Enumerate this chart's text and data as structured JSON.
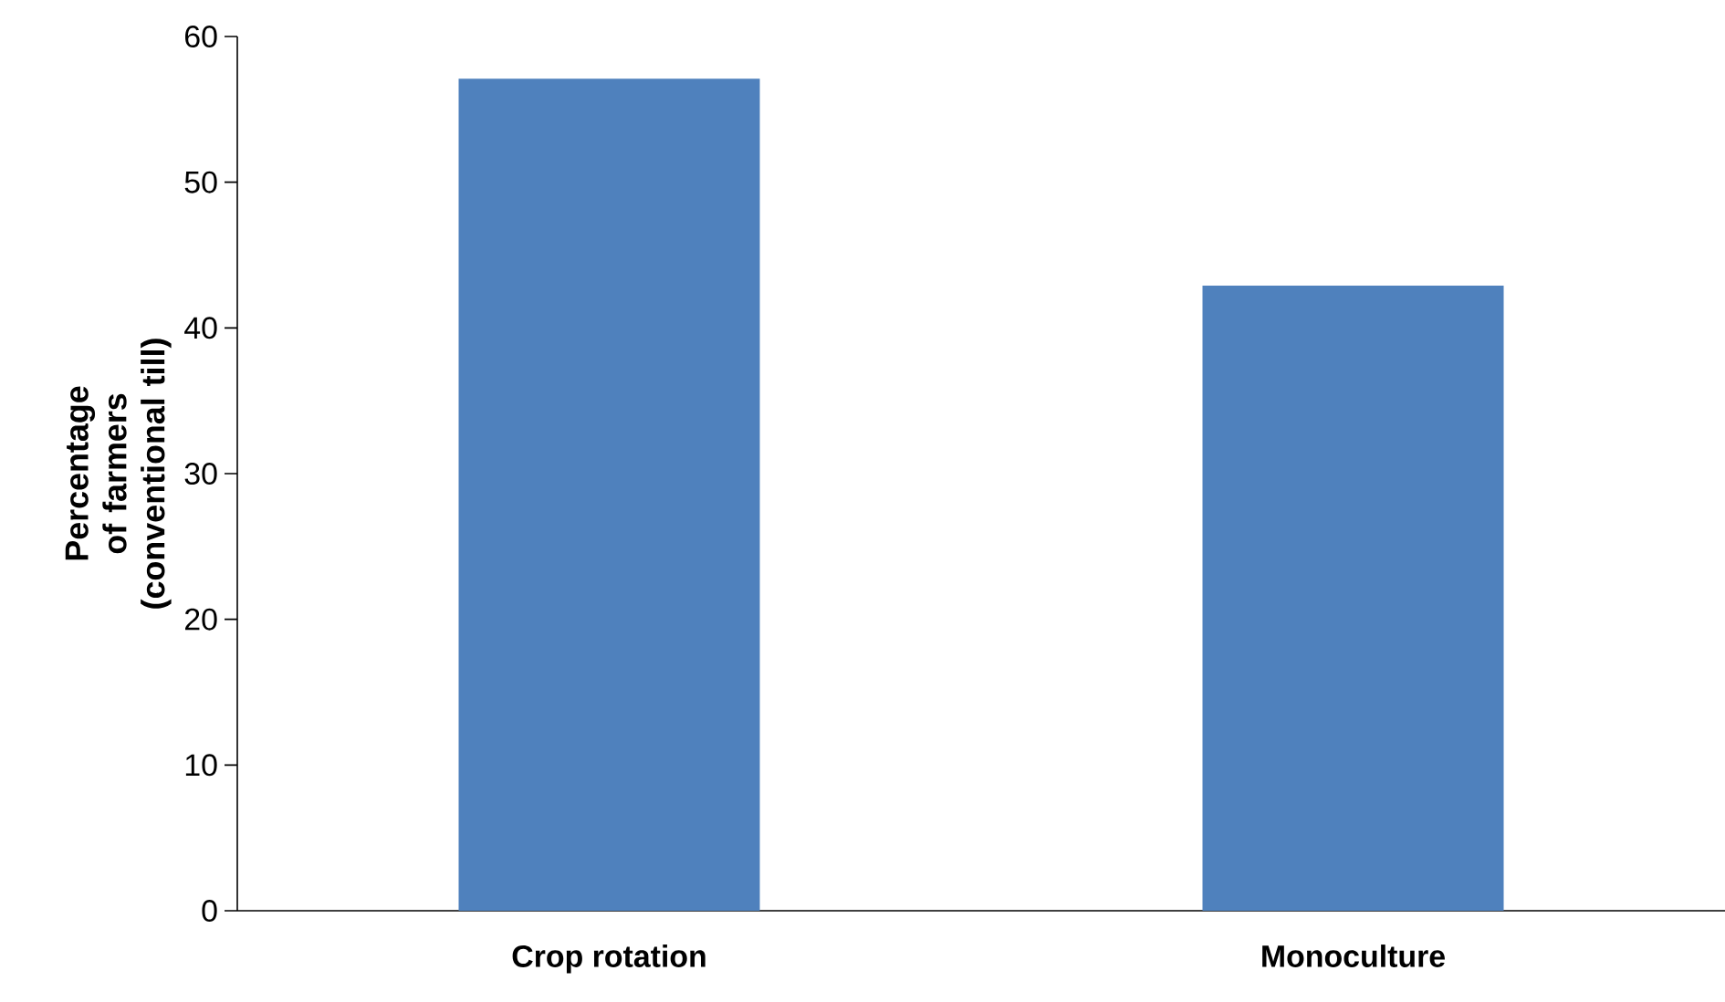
{
  "chart_data": {
    "type": "bar",
    "ylabel": "Percentage of farmers (conventional till)",
    "categories": [
      "Crop rotation",
      "Monoculture"
    ],
    "values": [
      57.1,
      42.9
    ],
    "color": "#4f81bd",
    "ylim": [
      0,
      60
    ],
    "yticks": [
      0,
      10,
      20,
      30,
      40,
      50,
      60
    ]
  }
}
